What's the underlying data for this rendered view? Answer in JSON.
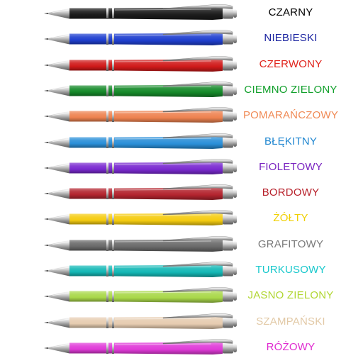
{
  "pens": [
    {
      "label": "CZARNY",
      "body_color": "#1c1c1c",
      "text_color": "#000000"
    },
    {
      "label": "NIEBIESKI",
      "body_color": "#1f3fcf",
      "text_color": "#1a23a0"
    },
    {
      "label": "CZERWONY",
      "body_color": "#d01a1a",
      "text_color": "#e0231c"
    },
    {
      "label": "CIEMNO ZIELONY",
      "body_color": "#168a2a",
      "text_color": "#12a02c"
    },
    {
      "label": "POMARAŃCZOWY",
      "body_color": "#ee8250",
      "text_color": "#f08a55"
    },
    {
      "label": "BŁĘKITNY",
      "body_color": "#2a8fd8",
      "text_color": "#1f86d0"
    },
    {
      "label": "FIOLETOWY",
      "body_color": "#7a2ad0",
      "text_color": "#7a24c0"
    },
    {
      "label": "BORDOWY",
      "body_color": "#b3242e",
      "text_color": "#b7202a"
    },
    {
      "label": "ŻÓŁTY",
      "body_color": "#f5cc10",
      "text_color": "#f0d000"
    },
    {
      "label": "GRAFITOWY",
      "body_color": "#6a6a6a",
      "text_color": "#7a7a7a"
    },
    {
      "label": "TURKUSOWY",
      "body_color": "#14b8b6",
      "text_color": "#18c8cc"
    },
    {
      "label": "JASNO ZIELONY",
      "body_color": "#a9d84a",
      "text_color": "#b0d630"
    },
    {
      "label": "SZAMPAŃSKI",
      "body_color": "#e6ccb0",
      "text_color": "#e2c9a6"
    },
    {
      "label": "RÓŻOWY",
      "body_color": "#e03ad8",
      "text_color": "#e02ad0"
    }
  ]
}
